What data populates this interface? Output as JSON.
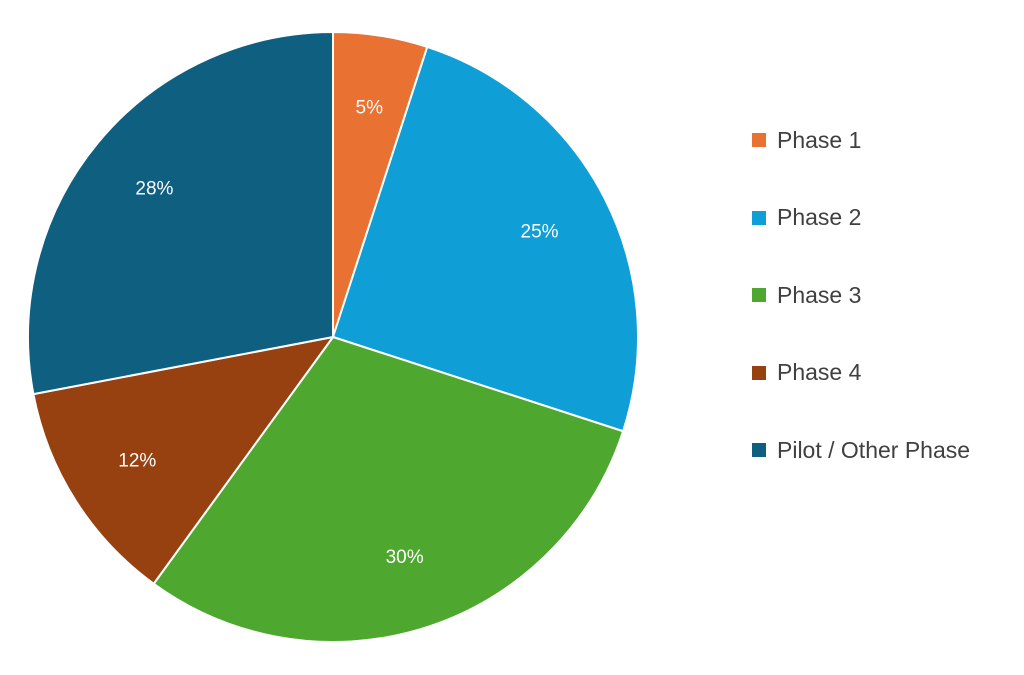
{
  "chart_data": {
    "type": "pie",
    "categories": [
      "Phase 1",
      "Phase 2",
      "Phase 3",
      "Phase 4",
      "Pilot / Other Phase"
    ],
    "values": [
      5,
      25,
      30,
      12,
      28
    ],
    "data_labels": [
      "5%",
      "25%",
      "30%",
      "12%",
      "28%"
    ],
    "colors": [
      "#E97132",
      "#0F9ED5",
      "#4EA72E",
      "#974010",
      "#0E5F80"
    ],
    "title": "",
    "legend_position": "right",
    "start_angle": "12 o'clock",
    "direction": "clockwise"
  }
}
